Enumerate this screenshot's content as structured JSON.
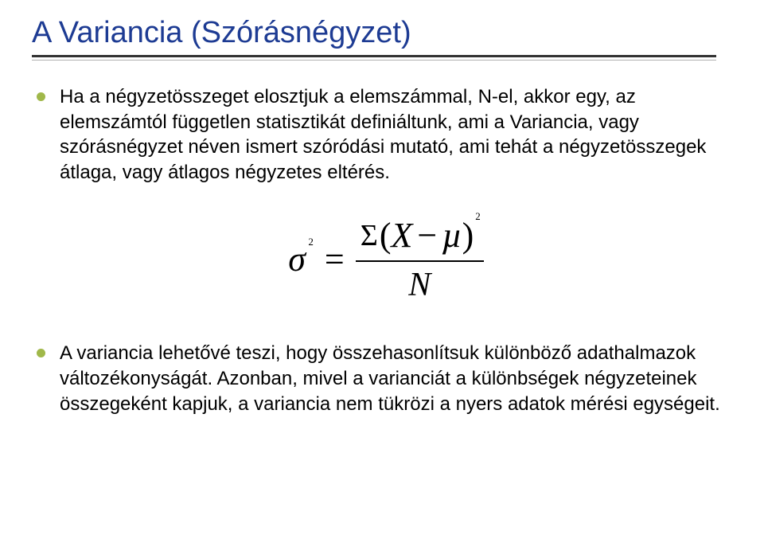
{
  "title": "A Variancia (Szórásnégyzet)",
  "title_color": "#1d3b93",
  "bullet_color": "#a0b84a",
  "bullets": [
    "Ha a négyzetösszeget elosztjuk a elemszámmal, N-el, akkor egy, az elemszámtól független statisztikát definiáltunk, ami a Variancia, vagy szórásnégyzet néven ismert szóródási mutató, ami tehát a négyzetösszegek átlaga, vagy átlagos négyzetes eltérés.",
    "A variancia lehetővé teszi, hogy összehasonlítsuk különböző adathalmazok változékonyságát. Azonban, mivel a varianciát a különbségek négyzeteinek összegeként kapjuk, a variancia nem tükrözi a nyers adatok mérési egységeit."
  ],
  "formula": {
    "lhs_symbol": "σ",
    "lhs_exp": "2",
    "relation": "=",
    "sum_symbol": "Σ",
    "open": "(",
    "var_x": "X",
    "minus": "−",
    "mu": "µ",
    "close": ")",
    "num_exp": "2",
    "denominator": "N"
  }
}
